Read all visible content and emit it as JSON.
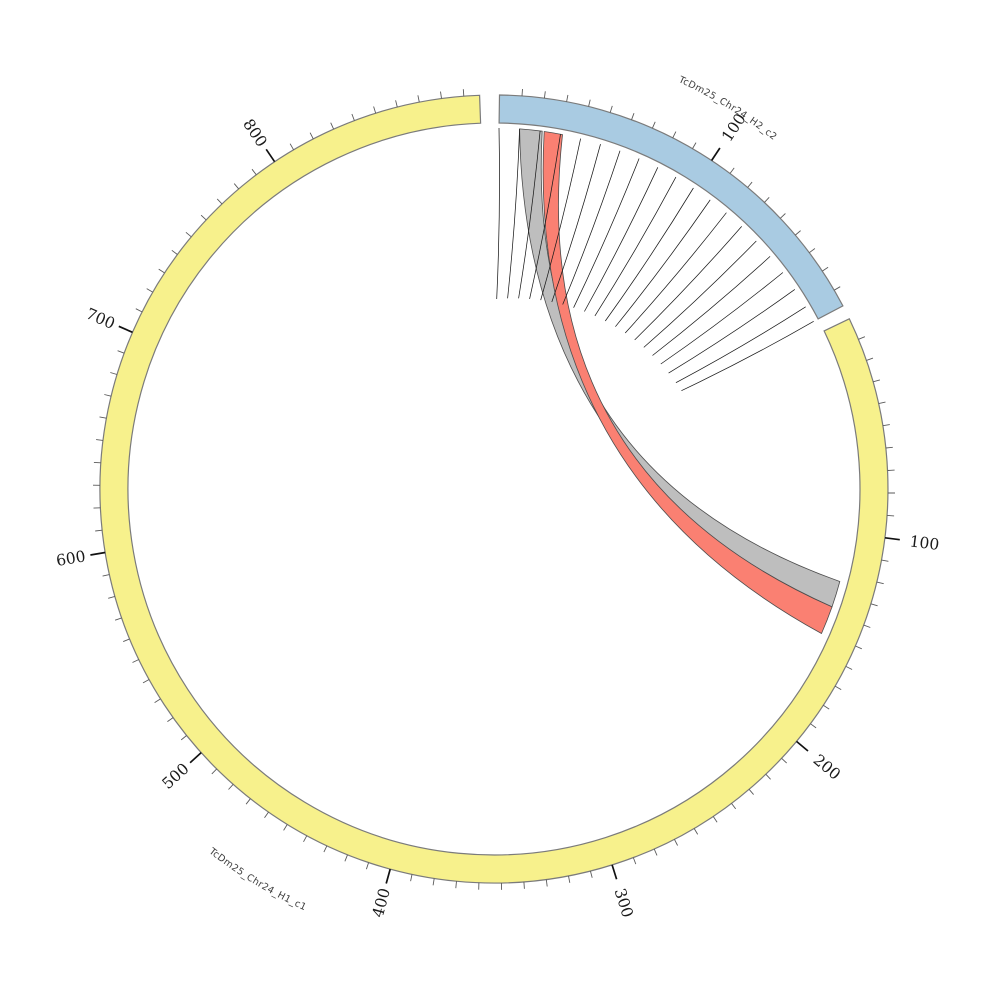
{
  "figure": {
    "background": "#ffffff",
    "description": "Circular synteny plot comparing two assembly contigs"
  },
  "chart_data": {
    "type": "chord",
    "subtype": "circos-synteny",
    "title": "",
    "legend": "none",
    "deg_per_unit": 0.3272,
    "sectors": [
      {
        "name": "TcDm25_Chr24_H2_c2",
        "length": 188,
        "angle_start": 0.8,
        "color": "#A9CBE2",
        "major_tick_values": [
          100
        ],
        "minor_tick_interval": 10
      },
      {
        "name": "TcDm25_Chr24_H1_c1",
        "length": 897,
        "angle_start": 64.4,
        "color": "#F7F18C",
        "major_tick_values": [
          100,
          200,
          300,
          400,
          500,
          600,
          700,
          800
        ],
        "minor_tick_interval": 10
      }
    ],
    "links": [
      {
        "name": "synteny-ribbon-gray",
        "color": "#BEBEBE",
        "source_sector": "TcDm25_Chr24_H2_c2",
        "source_start": 10,
        "source_end": 21,
        "target_sector": "TcDm25_Chr24_H1_c1",
        "target_start": 124,
        "target_end": 137,
        "inverted": true
      },
      {
        "name": "synteny-ribbon-salmon",
        "color": "#FA8072",
        "source_sector": "TcDm25_Chr24_H2_c2",
        "source_start": 22,
        "source_end": 31,
        "target_sector": "TcDm25_Chr24_H1_c1",
        "target_start": 137,
        "target_end": 151,
        "inverted": true
      }
    ],
    "radial_lines": {
      "sector": "TcDm25_Chr24_H2_c2",
      "positions": [
        0,
        10,
        20,
        30,
        40,
        50,
        60,
        70,
        80,
        90,
        100,
        110,
        120,
        130,
        140,
        150,
        160,
        170,
        180,
        188
      ]
    },
    "style": {
      "band_stroke": "#7b7b7b",
      "minor_tick_color": "#5a5a5a",
      "major_tick_color": "#111111",
      "axis_label_color": "#1a1a1a",
      "sector_name_color": "#3d3d3d",
      "ribbon_stroke": "#4d4d4d",
      "line_color": "#1a1a1a"
    }
  }
}
